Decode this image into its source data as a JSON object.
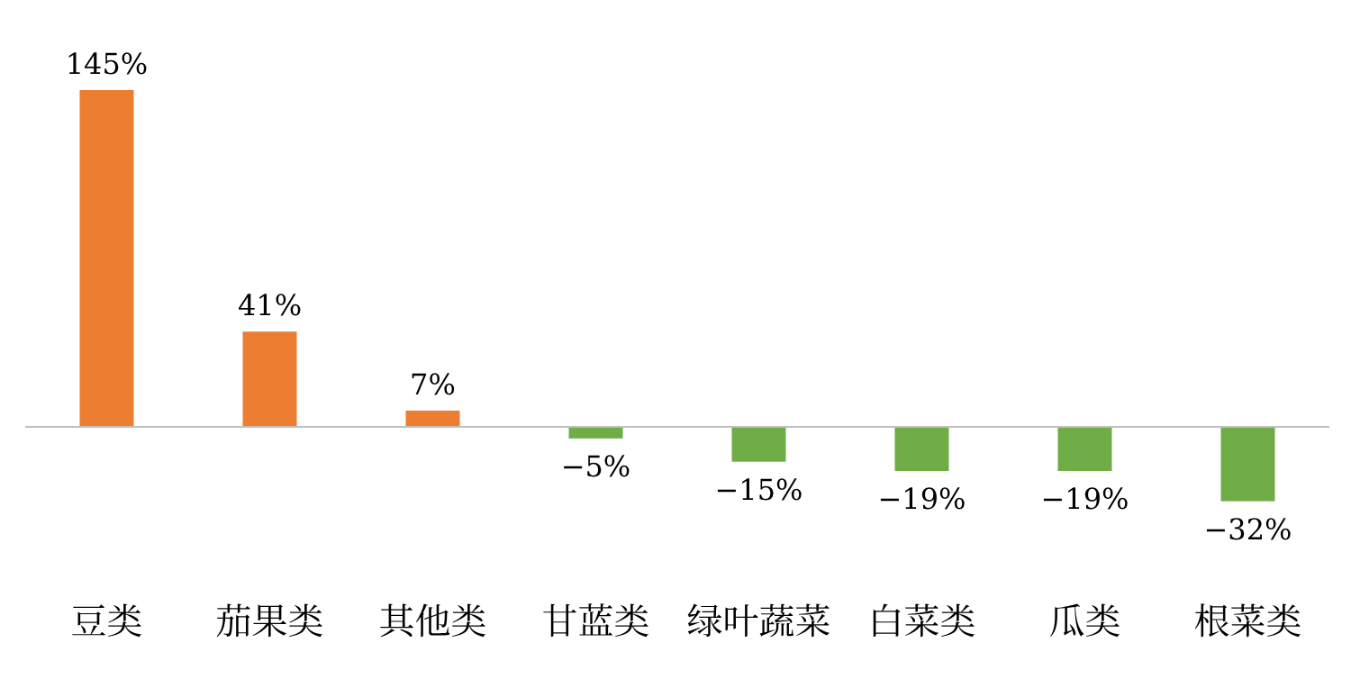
{
  "chart_data": {
    "type": "bar",
    "categories": [
      "豆类",
      "茄果类",
      "其他类",
      "甘蓝类",
      "绿叶蔬菜",
      "白菜类",
      "瓜类",
      "根菜类"
    ],
    "values": [
      145,
      41,
      7,
      -5,
      -15,
      -19,
      -19,
      -32
    ],
    "colors": [
      "#ed7d31",
      "#ed7d31",
      "#ed7d31",
      "#70ad47",
      "#70ad47",
      "#70ad47",
      "#70ad47",
      "#70ad47"
    ],
    "value_labels": [
      "145%",
      "41%",
      "7%",
      "−5%",
      "−15%",
      "−19%",
      "−19%",
      "−32%"
    ],
    "data_labels": false
  }
}
